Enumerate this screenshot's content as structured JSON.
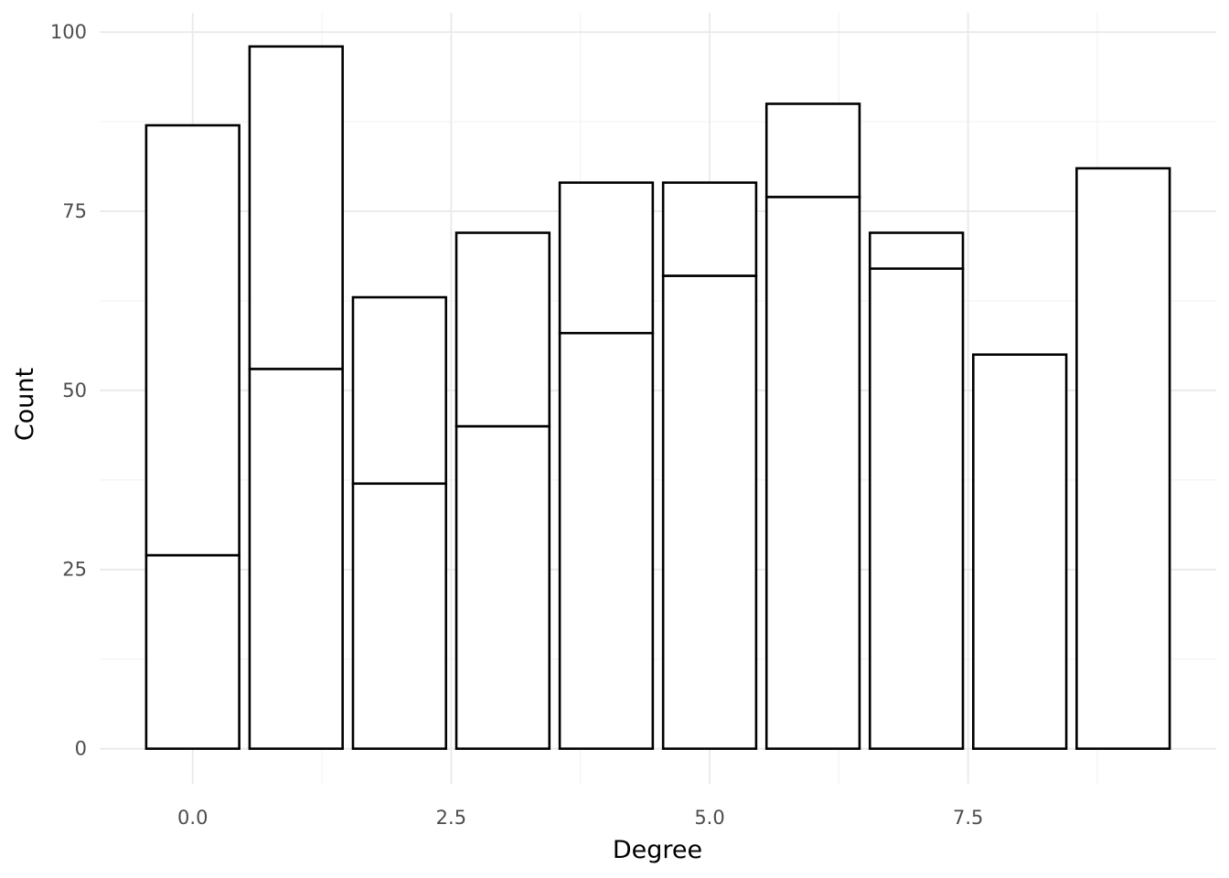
{
  "chart_data": {
    "type": "bar",
    "stacked": true,
    "x": [
      0,
      1,
      2,
      3,
      4,
      5,
      6,
      7,
      8,
      9
    ],
    "segments": [
      [
        27,
        60
      ],
      [
        53,
        45
      ],
      [
        37,
        26
      ],
      [
        45,
        27
      ],
      [
        58,
        21
      ],
      [
        66,
        13
      ],
      [
        77,
        13
      ],
      [
        67,
        5
      ],
      [
        55
      ],
      [
        81
      ]
    ],
    "totals": [
      87,
      98,
      63,
      72,
      79,
      79,
      90,
      72,
      55,
      81
    ],
    "xlabel": "Degree",
    "ylabel": "Count",
    "xlim": [
      -0.9,
      9.9
    ],
    "ylim": [
      -4.9,
      102.7
    ],
    "x_ticks": [
      0,
      2.5,
      5,
      7.5
    ],
    "x_tick_labels": [
      "0.0",
      "2.5",
      "5.0",
      "7.5"
    ],
    "y_ticks": [
      0,
      25,
      50,
      75,
      100
    ],
    "y_tick_labels": [
      "0",
      "25",
      "50",
      "75",
      "100"
    ],
    "grid": true,
    "legend": "none",
    "colors": {
      "bar_fill": "#ffffff",
      "bar_outline": "#000000",
      "grid": "#ebebeb",
      "tick_text": "#4d4d4d"
    }
  }
}
